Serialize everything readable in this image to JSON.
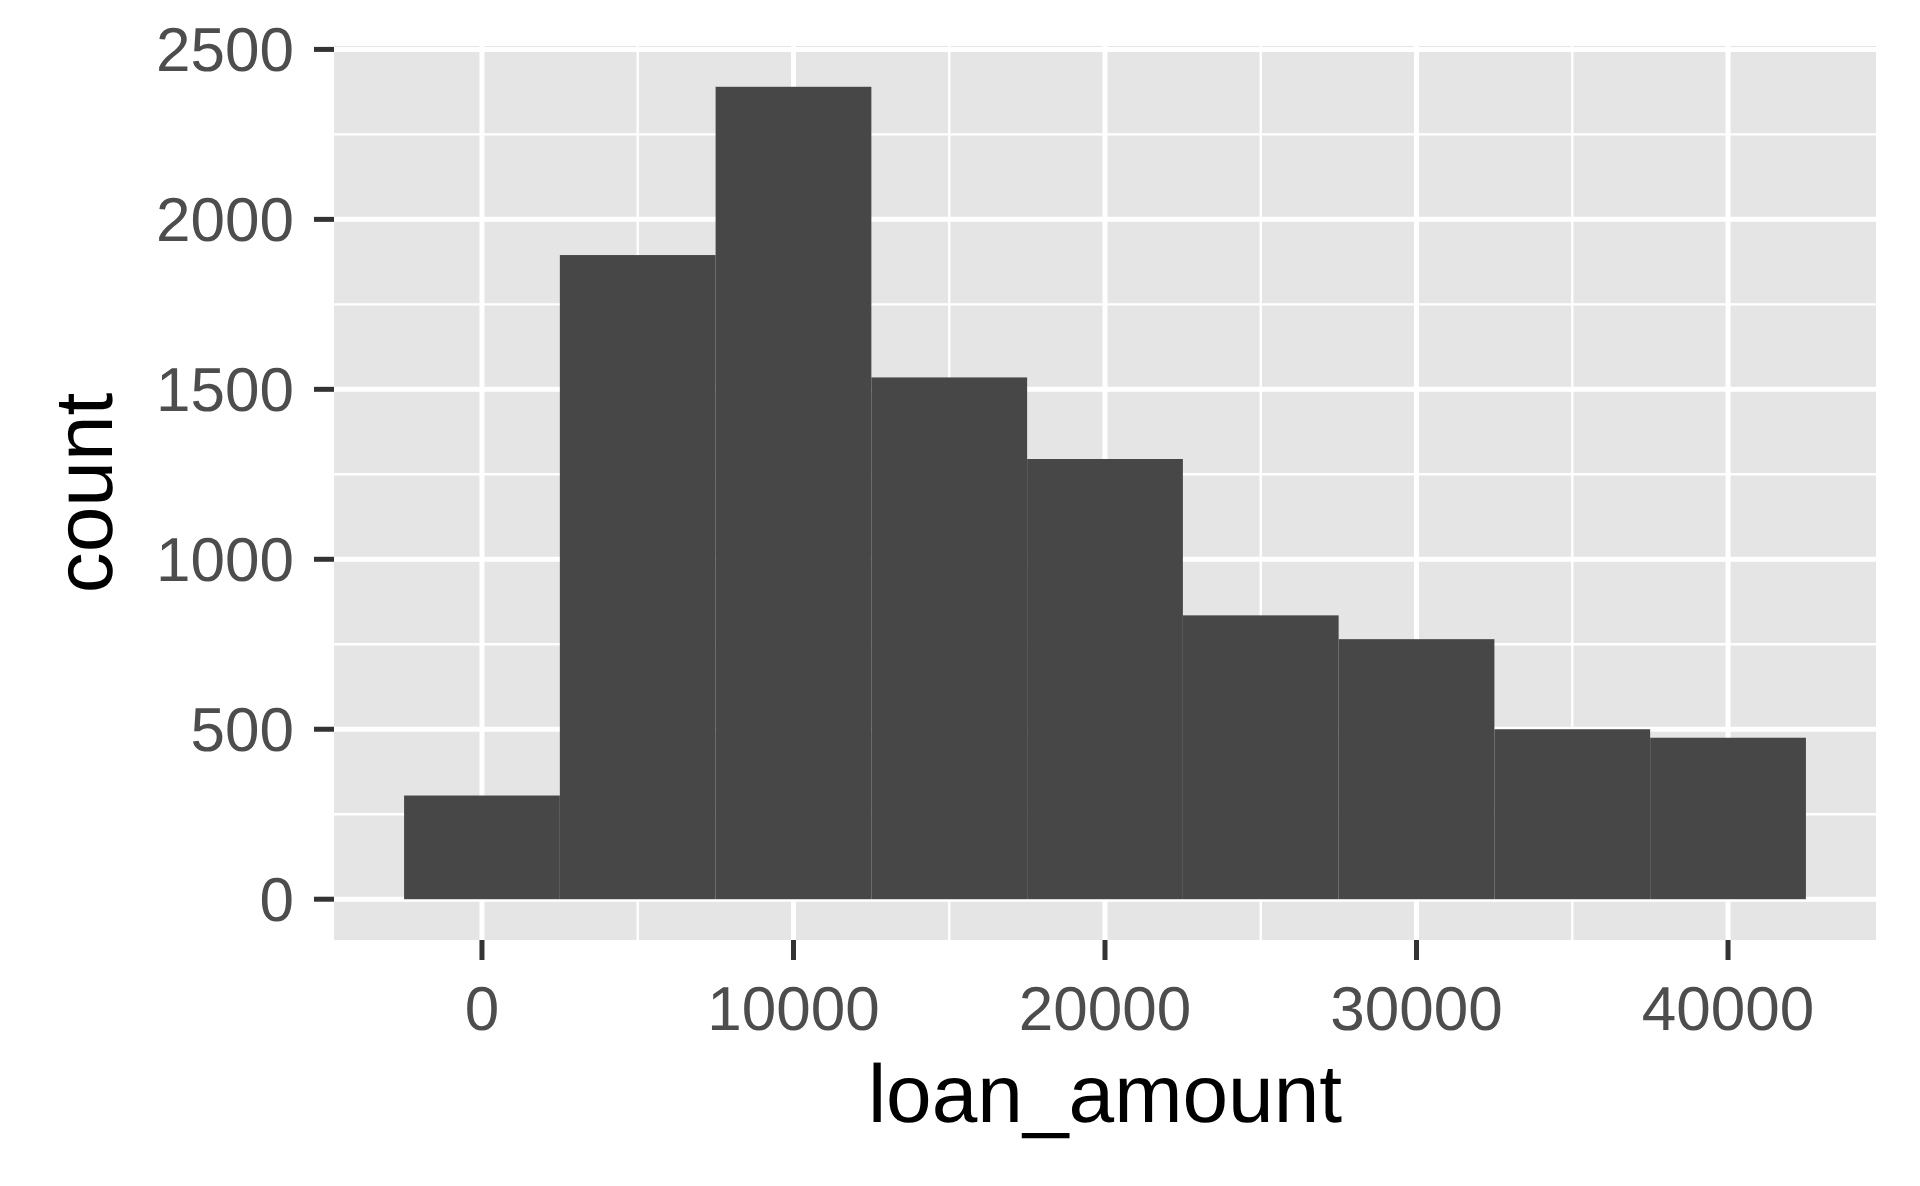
{
  "chart_data": {
    "type": "histogram",
    "xlabel": "loan_amount",
    "ylabel": "count",
    "bins": [
      -2500,
      2500,
      7500,
      12500,
      17500,
      22500,
      27500,
      32500,
      37500,
      42500
    ],
    "values": [
      305,
      1895,
      2390,
      1535,
      1295,
      835,
      765,
      500,
      475
    ],
    "color": "#474747",
    "xlim": [
      -4750,
      44750
    ],
    "xticks": [
      0,
      10000,
      20000,
      30000,
      40000
    ],
    "ylim": [
      -120,
      2510
    ],
    "yticks": [
      0,
      500,
      1000,
      1500,
      2000,
      2500
    ],
    "grid": true
  }
}
